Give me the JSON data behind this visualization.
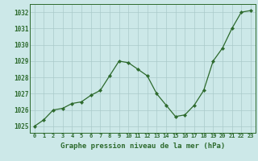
{
  "x": [
    0,
    1,
    2,
    3,
    4,
    5,
    6,
    7,
    8,
    9,
    10,
    11,
    12,
    13,
    14,
    15,
    16,
    17,
    18,
    19,
    20,
    21,
    22,
    23
  ],
  "y": [
    1025.0,
    1025.4,
    1026.0,
    1026.1,
    1026.4,
    1026.5,
    1026.9,
    1027.2,
    1028.1,
    1029.0,
    1028.9,
    1028.5,
    1028.1,
    1027.0,
    1026.3,
    1025.6,
    1025.7,
    1026.3,
    1027.2,
    1029.0,
    1029.8,
    1031.0,
    1032.0,
    1032.1
  ],
  "line_color": "#2d6a2d",
  "marker": "D",
  "marker_size": 2.2,
  "background_color": "#cce8e8",
  "grid_color": "#aacaca",
  "ylabel_ticks": [
    1025,
    1026,
    1027,
    1028,
    1029,
    1030,
    1031,
    1032
  ],
  "xlabel": "Graphe pression niveau de la mer (hPa)",
  "xlabel_color": "#2d6a2d",
  "xlabel_fontsize": 6.5,
  "ylim": [
    1024.6,
    1032.5
  ],
  "xlim": [
    -0.5,
    23.5
  ],
  "tick_fontsize": 5.0,
  "ytick_fontsize": 5.5
}
